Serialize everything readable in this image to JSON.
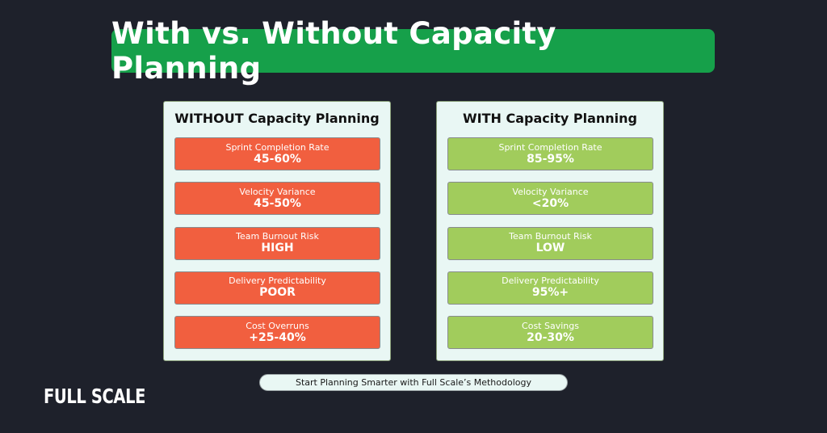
{
  "header": {
    "title": "With vs. Without Capacity Planning"
  },
  "colors": {
    "background": "#1e212b",
    "title_banner": "#16a04a",
    "panel_background": "#e9f7f4",
    "without_row": "#f15f3f",
    "with_row": "#a1cc5c"
  },
  "without": {
    "title": "WITHOUT Capacity Planning",
    "rows": [
      {
        "label": "Sprint Completion Rate",
        "value": "45-60%"
      },
      {
        "label": "Velocity Variance",
        "value": "45-50%"
      },
      {
        "label": "Team Burnout Risk",
        "value": "HIGH"
      },
      {
        "label": "Delivery Predictability",
        "value": "POOR"
      },
      {
        "label": "Cost Overruns",
        "value": "+25-40%"
      }
    ]
  },
  "with": {
    "title": "WITH Capacity Planning",
    "rows": [
      {
        "label": "Sprint Completion Rate",
        "value": "85-95%"
      },
      {
        "label": "Velocity Variance",
        "value": "<20%"
      },
      {
        "label": "Team Burnout Risk",
        "value": "LOW"
      },
      {
        "label": "Delivery Predictability",
        "value": "95%+"
      },
      {
        "label": "Cost Savings",
        "value": "20-30%"
      }
    ]
  },
  "cta": {
    "label": "Start Planning Smarter with Full Scale’s Methodology"
  },
  "brand": {
    "logo_text": "FULL SCALE"
  }
}
